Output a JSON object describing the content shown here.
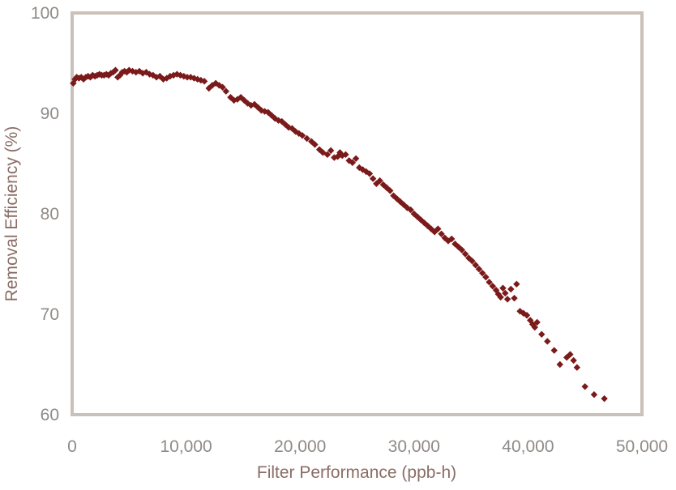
{
  "chart_data": {
    "type": "scatter",
    "title": "",
    "xlabel": "Filter Performance (ppb-h)",
    "ylabel": "Removal Efficiency (%)",
    "xlim": [
      0,
      50000
    ],
    "ylim": [
      60,
      100
    ],
    "x_ticks": [
      "0",
      "10,000",
      "20,000",
      "30,000",
      "40,000",
      "50,000"
    ],
    "y_ticks": [
      "60",
      "70",
      "80",
      "90",
      "100"
    ],
    "grid": false,
    "legend": "none",
    "marker": "diamond",
    "colors": {
      "marker": "#7b1a1a",
      "frame": "#c9c1ba",
      "tick_text": "#8f8a86",
      "axis_title_text": "#8a6d64"
    },
    "series": [
      {
        "points": [
          [
            100,
            93.0
          ],
          [
            250,
            93.4
          ],
          [
            400,
            93.6
          ],
          [
            600,
            93.5
          ],
          [
            800,
            93.6
          ],
          [
            1000,
            93.4
          ],
          [
            1200,
            93.6
          ],
          [
            1400,
            93.7
          ],
          [
            1600,
            93.6
          ],
          [
            1800,
            93.8
          ],
          [
            2000,
            93.7
          ],
          [
            2200,
            93.8
          ],
          [
            2400,
            93.9
          ],
          [
            2600,
            93.8
          ],
          [
            2800,
            93.8
          ],
          [
            3000,
            93.9
          ],
          [
            3200,
            93.8
          ],
          [
            3400,
            94.0
          ],
          [
            3600,
            94.1
          ],
          [
            3800,
            94.3
          ],
          [
            4000,
            93.6
          ],
          [
            4200,
            93.8
          ],
          [
            4400,
            94.1
          ],
          [
            4600,
            94.2
          ],
          [
            4800,
            94.1
          ],
          [
            5000,
            94.3
          ],
          [
            5300,
            94.2
          ],
          [
            5600,
            94.1
          ],
          [
            5900,
            94.2
          ],
          [
            6200,
            94.0
          ],
          [
            6500,
            94.1
          ],
          [
            6800,
            93.9
          ],
          [
            7100,
            93.8
          ],
          [
            7400,
            93.6
          ],
          [
            7700,
            93.7
          ],
          [
            8000,
            93.4
          ],
          [
            8300,
            93.5
          ],
          [
            8600,
            93.7
          ],
          [
            8900,
            93.8
          ],
          [
            9200,
            93.9
          ],
          [
            9500,
            93.8
          ],
          [
            9800,
            93.7
          ],
          [
            10100,
            93.6
          ],
          [
            10400,
            93.6
          ],
          [
            10700,
            93.5
          ],
          [
            11000,
            93.4
          ],
          [
            11300,
            93.3
          ],
          [
            11600,
            93.2
          ],
          [
            12000,
            92.5
          ],
          [
            12300,
            92.8
          ],
          [
            12600,
            93.0
          ],
          [
            12900,
            92.8
          ],
          [
            13200,
            92.6
          ],
          [
            13500,
            92.2
          ],
          [
            13900,
            91.6
          ],
          [
            14200,
            91.3
          ],
          [
            14500,
            91.4
          ],
          [
            14800,
            91.6
          ],
          [
            15100,
            91.3
          ],
          [
            15400,
            91.0
          ],
          [
            15700,
            90.8
          ],
          [
            16000,
            90.9
          ],
          [
            16300,
            90.6
          ],
          [
            16600,
            90.3
          ],
          [
            16900,
            90.2
          ],
          [
            17200,
            90.1
          ],
          [
            17500,
            89.8
          ],
          [
            17800,
            89.5
          ],
          [
            18100,
            89.3
          ],
          [
            18400,
            89.2
          ],
          [
            18700,
            88.9
          ],
          [
            19000,
            88.6
          ],
          [
            19300,
            88.5
          ],
          [
            19600,
            88.2
          ],
          [
            19900,
            88.0
          ],
          [
            20200,
            87.8
          ],
          [
            20600,
            87.5
          ],
          [
            21000,
            87.2
          ],
          [
            21300,
            86.9
          ],
          [
            21700,
            86.4
          ],
          [
            22000,
            86.1
          ],
          [
            22400,
            85.9
          ],
          [
            22700,
            86.3
          ],
          [
            23000,
            85.6
          ],
          [
            23300,
            85.7
          ],
          [
            23500,
            86.1
          ],
          [
            23700,
            85.8
          ],
          [
            24000,
            85.9
          ],
          [
            24300,
            85.3
          ],
          [
            24600,
            85.1
          ],
          [
            24900,
            85.5
          ],
          [
            25200,
            84.6
          ],
          [
            25500,
            84.4
          ],
          [
            25800,
            84.2
          ],
          [
            26100,
            84.0
          ],
          [
            26400,
            83.5
          ],
          [
            26700,
            83.0
          ],
          [
            27000,
            83.3
          ],
          [
            27300,
            82.9
          ],
          [
            27600,
            82.6
          ],
          [
            27900,
            82.3
          ],
          [
            28200,
            81.8
          ],
          [
            28500,
            81.5
          ],
          [
            28800,
            81.2
          ],
          [
            29100,
            80.9
          ],
          [
            29400,
            80.6
          ],
          [
            29700,
            80.4
          ],
          [
            30000,
            80.0
          ],
          [
            30300,
            79.7
          ],
          [
            30600,
            79.4
          ],
          [
            30900,
            79.1
          ],
          [
            31200,
            78.8
          ],
          [
            31500,
            78.5
          ],
          [
            31800,
            78.2
          ],
          [
            32100,
            78.5
          ],
          [
            32400,
            78.0
          ],
          [
            32700,
            77.6
          ],
          [
            33000,
            77.3
          ],
          [
            33300,
            77.5
          ],
          [
            33600,
            77.0
          ],
          [
            33900,
            76.7
          ],
          [
            34200,
            76.4
          ],
          [
            34500,
            76.0
          ],
          [
            34800,
            75.6
          ],
          [
            35100,
            75.3
          ],
          [
            35400,
            74.9
          ],
          [
            35700,
            74.5
          ],
          [
            36000,
            74.1
          ],
          [
            36300,
            73.7
          ],
          [
            36600,
            73.2
          ],
          [
            36900,
            72.8
          ],
          [
            37200,
            72.4
          ],
          [
            37400,
            72.0
          ],
          [
            37600,
            71.7
          ],
          [
            37800,
            72.6
          ],
          [
            38000,
            72.1
          ],
          [
            38200,
            71.5
          ],
          [
            38500,
            72.5
          ],
          [
            38800,
            71.6
          ],
          [
            39000,
            73.0
          ],
          [
            39300,
            70.3
          ],
          [
            39600,
            70.1
          ],
          [
            39900,
            69.9
          ],
          [
            40200,
            69.4
          ],
          [
            40400,
            69.0
          ],
          [
            40600,
            68.7
          ],
          [
            40800,
            69.2
          ],
          [
            41200,
            68.0
          ],
          [
            41700,
            67.3
          ],
          [
            42300,
            66.4
          ],
          [
            42800,
            65.0
          ],
          [
            43400,
            65.7
          ],
          [
            43700,
            66.0
          ],
          [
            44000,
            65.4
          ],
          [
            44300,
            64.7
          ],
          [
            45000,
            62.8
          ],
          [
            45800,
            62.0
          ],
          [
            46700,
            61.6
          ]
        ]
      }
    ]
  }
}
